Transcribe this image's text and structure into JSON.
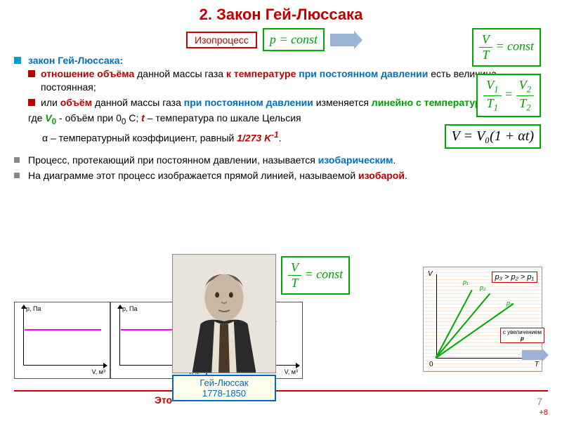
{
  "title": {
    "text": "2. Закон Гей-Люссака",
    "color": "#c00000"
  },
  "isoproc": {
    "label": "Изопроцесс",
    "border": "#c00000",
    "text_color": "#c00000"
  },
  "main_formula": {
    "text": "p = const",
    "border": "#00a000",
    "color": "#00a000"
  },
  "law": {
    "heading": "закон Гей-Люссака:",
    "bullet_color_outer": "#00a0c0",
    "bullet_color_inner": "#c00000",
    "item1_parts": [
      {
        "t": "отношение объёма ",
        "c": "#c00000",
        "b": true
      },
      {
        "t": "данной массы газа ",
        "c": "#000"
      },
      {
        "t": "к температуре ",
        "c": "#c00000",
        "b": true
      },
      {
        "t": "при постоянном давлении ",
        "c": "#0070c0",
        "b": true
      },
      {
        "t": "есть величина постоянная;",
        "c": "#000"
      }
    ],
    "item2_parts": [
      {
        "t": "или ",
        "c": "#000"
      },
      {
        "t": "объём ",
        "c": "#c00000",
        "b": true
      },
      {
        "t": "данной массы газа ",
        "c": "#000"
      },
      {
        "t": "при постоянном давлении ",
        "c": "#0070c0",
        "b": true
      },
      {
        "t": "изменяется ",
        "c": "#000"
      },
      {
        "t": "линейно с температурой",
        "c": "#00a000",
        "b": true
      },
      {
        "t": ":",
        "c": "#000"
      }
    ],
    "where_line": [
      {
        "t": "где ",
        "c": "#000"
      },
      {
        "t": "V",
        "c": "#00a000",
        "b": true,
        "i": true
      },
      {
        "t": "0",
        "c": "#00a000",
        "b": true,
        "sub": true
      },
      {
        "t": " - объём при 0",
        "c": "#000"
      },
      {
        "t": "0",
        "c": "#000",
        "sub": true
      },
      {
        "t": " C; ",
        "c": "#000"
      },
      {
        "t": "t",
        "c": "#c00000",
        "b": true,
        "i": true
      },
      {
        "t": " – температура по шкале Цельсия",
        "c": "#000"
      }
    ],
    "alpha_line": [
      {
        "t": "α – температурный коэффициент, равный  ",
        "c": "#000"
      },
      {
        "t": "1/273 K",
        "c": "#c00000",
        "b": true,
        "i": true
      },
      {
        "t": "-1",
        "c": "#c00000",
        "b": true,
        "i": true,
        "sup": true
      },
      {
        "t": ".",
        "c": "#000"
      }
    ]
  },
  "right_formulas": {
    "f1": {
      "num": "V",
      "den": "T",
      "rhs": "= const",
      "color": "#00a000"
    },
    "f2": {
      "n1": "V",
      "d1": "T",
      "s1": "1",
      "n2": "V",
      "d2": "T",
      "s2": "2",
      "color": "#00a000"
    },
    "f3": {
      "text": "V = V₀(1 + αt)",
      "color": "#000",
      "border": "#00a000",
      "bg": "#fff"
    }
  },
  "section2": {
    "item1": [
      {
        "t": "Процесс, протекающий при постоянном давлении, называется ",
        "c": "#000"
      },
      {
        "t": "изобарическим",
        "c": "#0070c0",
        "b": true
      },
      {
        "t": ".",
        "c": "#000"
      }
    ],
    "item2": [
      {
        "t": "На диаграмме этот процесс изображается прямой линией, называемой ",
        "c": "#000"
      },
      {
        "t": "изобарой",
        "c": "#c00000",
        "b": true
      },
      {
        "t": ".",
        "c": "#000"
      }
    ]
  },
  "diagrams": [
    {
      "ylabel": "p, Па",
      "xlabel": "V, м³",
      "type": "horiz"
    },
    {
      "ylabel": "p, Па",
      "xlabel": "V, м³",
      "type": "horiz"
    },
    {
      "ylabel": "",
      "xlabel": "V, м³",
      "type": "linear"
    }
  ],
  "portrait": {
    "name": "Гей-Люссак",
    "years": "1778-1850",
    "color": "#0060c0"
  },
  "formula_float": {
    "num": "V",
    "den": "T",
    "rhs": "= const",
    "color": "#00a000"
  },
  "right_diagram": {
    "ylabel": "V",
    "xlabel": "T",
    "zero": "0",
    "inequality": "p₃ > p₂ > p₁",
    "note_top": "с увеличением",
    "note_var": "p",
    "lines": [
      {
        "angle": -62,
        "len": 120,
        "color": "#0a0",
        "label": "p₁",
        "solid": true
      },
      {
        "angle": -50,
        "len": 125,
        "color": "#0a0",
        "label": "p₂",
        "solid": true
      },
      {
        "angle": -35,
        "len": 135,
        "color": "#0a0",
        "label": "p₃",
        "solid": true
      }
    ]
  },
  "page_number": "7",
  "plus": "+8",
  "eto": {
    "text": "Это",
    "color": "#c00000"
  }
}
